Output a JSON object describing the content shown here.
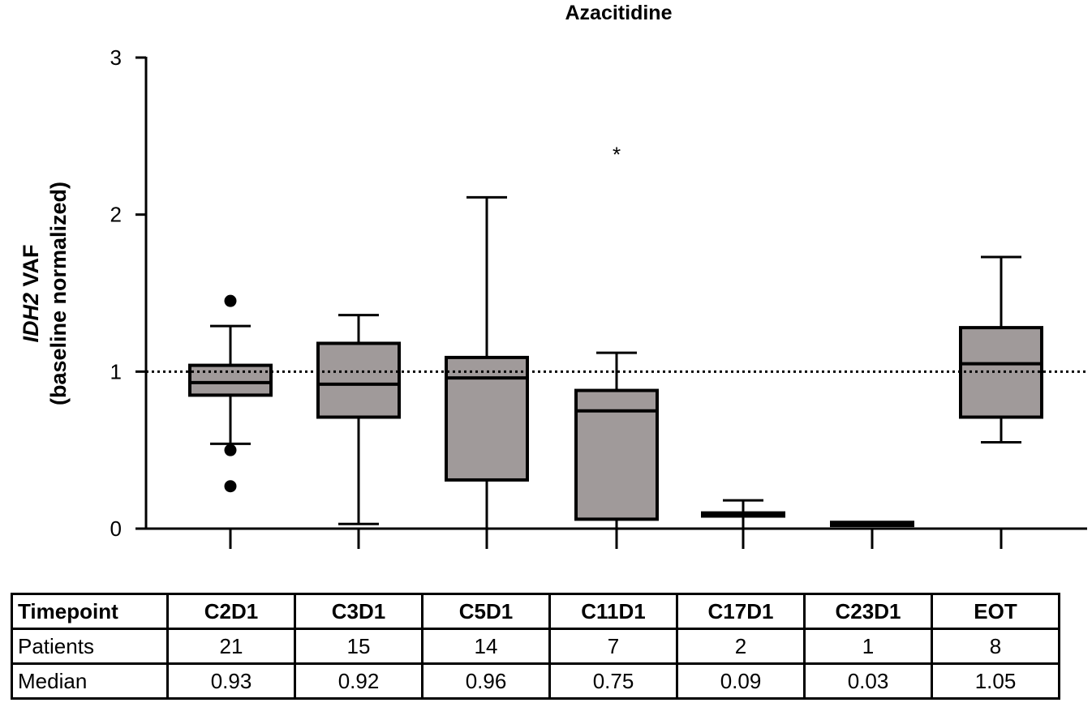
{
  "chart_data": {
    "type": "box",
    "title": "Azacitidine",
    "ylabel_italic": "IDH2",
    "ylabel_rest": " VAF",
    "ylabel_line2": "(baseline normalized)",
    "ylim": [
      0,
      3
    ],
    "yticks": [
      "0",
      "1",
      "2",
      "3"
    ],
    "reference_line": 1,
    "box_color": "#a09a9a",
    "categories": [
      "C2D1",
      "C3D1",
      "C5D1",
      "C11D1",
      "C17D1",
      "C23D1",
      "EOT"
    ],
    "boxes": [
      {
        "category": "C2D1",
        "whisker_low": 0.54,
        "q1": 0.85,
        "median": 0.93,
        "q3": 1.04,
        "whisker_high": 1.29,
        "outliers": [
          1.45,
          0.5,
          0.27
        ]
      },
      {
        "category": "C3D1",
        "whisker_low": 0.03,
        "q1": 0.71,
        "median": 0.92,
        "q3": 1.18,
        "whisker_high": 1.36,
        "outliers": []
      },
      {
        "category": "C5D1",
        "whisker_low": 0.0,
        "q1": 0.31,
        "median": 0.96,
        "q3": 1.09,
        "whisker_high": 2.11,
        "outliers": []
      },
      {
        "category": "C11D1",
        "whisker_low": 0.0,
        "q1": 0.06,
        "median": 0.75,
        "q3": 0.88,
        "whisker_high": 1.12,
        "outliers": []
      },
      {
        "category": "C17D1",
        "whisker_low": 0.0,
        "q1": 0.08,
        "median": 0.09,
        "q3": 0.1,
        "whisker_high": 0.18,
        "outliers": []
      },
      {
        "category": "C23D1",
        "whisker_low": 0.02,
        "q1": 0.02,
        "median": 0.03,
        "q3": 0.04,
        "whisker_high": 0.04,
        "outliers": []
      },
      {
        "category": "EOT",
        "whisker_low": 0.55,
        "q1": 0.71,
        "median": 1.05,
        "q3": 1.28,
        "whisker_high": 1.73,
        "outliers": []
      }
    ],
    "annotations": [
      {
        "text": "*",
        "category": "C11D1",
        "y": 2.42
      }
    ]
  },
  "table": {
    "header_label": "Timepoint",
    "columns": [
      "C2D1",
      "C3D1",
      "C5D1",
      "C11D1",
      "C17D1",
      "C23D1",
      "EOT"
    ],
    "rows": [
      {
        "label": "Patients",
        "values": [
          "21",
          "15",
          "14",
          "7",
          "2",
          "1",
          "8"
        ]
      },
      {
        "label": "Median",
        "values": [
          "0.93",
          "0.92",
          "0.96",
          "0.75",
          "0.09",
          "0.03",
          "1.05"
        ]
      }
    ]
  }
}
